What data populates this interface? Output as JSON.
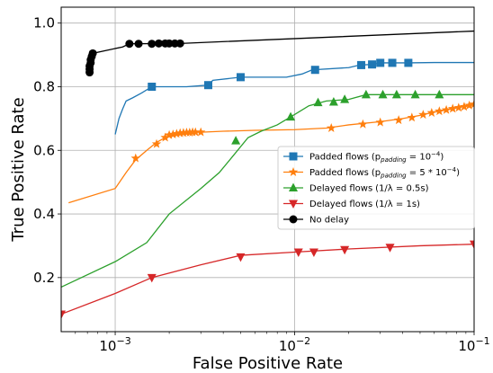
{
  "chart_data": {
    "type": "line",
    "xlabel": "False Positive Rate",
    "ylabel": "True Positive Rate",
    "xscale": "log",
    "xlim": [
      0.0005,
      0.1
    ],
    "ylim": [
      0.03,
      1.05
    ],
    "grid": true,
    "legend_position": "center-right",
    "x_ticks": [
      {
        "value": 0.001,
        "base": "10",
        "exp": "−3"
      },
      {
        "value": 0.01,
        "base": "10",
        "exp": "−2"
      },
      {
        "value": 0.1,
        "base": "10",
        "exp": "−1"
      }
    ],
    "y_ticks": [
      {
        "value": 0.2,
        "label": "0.2"
      },
      {
        "value": 0.4,
        "label": "0.4"
      },
      {
        "value": 0.6,
        "label": "0.6"
      },
      {
        "value": 0.8,
        "label": "0.8"
      },
      {
        "value": 1.0,
        "label": "1.0"
      }
    ],
    "series": [
      {
        "name": "Padded flows",
        "legend_suffix": "(p",
        "legend_sub": "padding",
        "legend_rest": " = 10",
        "legend_sup": "−4",
        "legend_end": ")",
        "color": "#1f77b4",
        "marker": "square",
        "line": [
          [
            0.001,
            0.65
          ],
          [
            0.00105,
            0.7
          ],
          [
            0.0011,
            0.73
          ],
          [
            0.00115,
            0.755
          ],
          [
            0.00125,
            0.765
          ],
          [
            0.0014,
            0.78
          ],
          [
            0.0016,
            0.8
          ],
          [
            0.0025,
            0.8
          ],
          [
            0.0033,
            0.805
          ],
          [
            0.0035,
            0.82
          ],
          [
            0.005,
            0.83
          ],
          [
            0.0065,
            0.83
          ],
          [
            0.009,
            0.83
          ],
          [
            0.011,
            0.84
          ],
          [
            0.0125,
            0.853
          ],
          [
            0.02,
            0.86
          ],
          [
            0.023,
            0.868
          ],
          [
            0.027,
            0.87
          ],
          [
            0.03,
            0.875
          ],
          [
            0.035,
            0.875
          ],
          [
            0.043,
            0.875
          ],
          [
            0.06,
            0.876
          ],
          [
            0.1,
            0.876
          ]
        ],
        "markers": [
          [
            0.0016,
            0.8
          ],
          [
            0.0033,
            0.805
          ],
          [
            0.005,
            0.83
          ],
          [
            0.013,
            0.853
          ],
          [
            0.0235,
            0.868
          ],
          [
            0.027,
            0.87
          ],
          [
            0.03,
            0.875
          ],
          [
            0.035,
            0.875
          ],
          [
            0.043,
            0.875
          ]
        ]
      },
      {
        "name": "Padded flows",
        "legend_suffix": "(p",
        "legend_sub": "padding",
        "legend_rest": " = 5 * 10",
        "legend_sup": "−4",
        "legend_end": ")",
        "color": "#ff7f0e",
        "marker": "star",
        "line": [
          [
            0.00055,
            0.435
          ],
          [
            0.001,
            0.48
          ],
          [
            0.00115,
            0.53
          ],
          [
            0.0013,
            0.57
          ],
          [
            0.0015,
            0.6
          ],
          [
            0.0017,
            0.625
          ],
          [
            0.0019,
            0.64
          ],
          [
            0.0023,
            0.655
          ],
          [
            0.003,
            0.657
          ],
          [
            0.004,
            0.66
          ],
          [
            0.006,
            0.663
          ],
          [
            0.01,
            0.665
          ],
          [
            0.015,
            0.67
          ],
          [
            0.02,
            0.68
          ],
          [
            0.03,
            0.69
          ],
          [
            0.04,
            0.7
          ],
          [
            0.05,
            0.71
          ],
          [
            0.06,
            0.72
          ],
          [
            0.075,
            0.73
          ],
          [
            0.1,
            0.745
          ]
        ],
        "markers": [
          [
            0.0013,
            0.575
          ],
          [
            0.0017,
            0.62
          ],
          [
            0.0019,
            0.64
          ],
          [
            0.002,
            0.648
          ],
          [
            0.0021,
            0.65
          ],
          [
            0.0022,
            0.652
          ],
          [
            0.0023,
            0.654
          ],
          [
            0.0024,
            0.655
          ],
          [
            0.0025,
            0.656
          ],
          [
            0.0026,
            0.656
          ],
          [
            0.0027,
            0.657
          ],
          [
            0.0028,
            0.657
          ],
          [
            0.003,
            0.657
          ],
          [
            0.016,
            0.67
          ],
          [
            0.024,
            0.682
          ],
          [
            0.03,
            0.688
          ],
          [
            0.038,
            0.695
          ],
          [
            0.045,
            0.703
          ],
          [
            0.052,
            0.712
          ],
          [
            0.058,
            0.718
          ],
          [
            0.064,
            0.723
          ],
          [
            0.07,
            0.727
          ],
          [
            0.076,
            0.731
          ],
          [
            0.082,
            0.734
          ],
          [
            0.088,
            0.737
          ],
          [
            0.094,
            0.741
          ],
          [
            0.1,
            0.745
          ]
        ]
      },
      {
        "name": "Delayed flows",
        "legend_suffix": "(1/λ = 0.5s)",
        "color": "#2ca02c",
        "marker": "triangle-up",
        "line": [
          [
            0.0005,
            0.17
          ],
          [
            0.001,
            0.25
          ],
          [
            0.0015,
            0.31
          ],
          [
            0.002,
            0.4
          ],
          [
            0.003,
            0.48
          ],
          [
            0.0038,
            0.53
          ],
          [
            0.0045,
            0.58
          ],
          [
            0.0055,
            0.64
          ],
          [
            0.0065,
            0.66
          ],
          [
            0.008,
            0.68
          ],
          [
            0.0095,
            0.705
          ],
          [
            0.012,
            0.74
          ],
          [
            0.015,
            0.755
          ],
          [
            0.02,
            0.76
          ],
          [
            0.025,
            0.775
          ],
          [
            0.03,
            0.775
          ],
          [
            0.05,
            0.775
          ],
          [
            0.1,
            0.775
          ]
        ],
        "markers": [
          [
            0.0047,
            0.63
          ],
          [
            0.0095,
            0.705
          ],
          [
            0.0135,
            0.75
          ],
          [
            0.0165,
            0.752
          ],
          [
            0.019,
            0.76
          ],
          [
            0.025,
            0.775
          ],
          [
            0.031,
            0.775
          ],
          [
            0.037,
            0.775
          ],
          [
            0.047,
            0.775
          ],
          [
            0.064,
            0.775
          ]
        ]
      },
      {
        "name": "Delayed flows",
        "legend_suffix": "(1/λ = 1s)",
        "color": "#d62728",
        "marker": "triangle-down",
        "line": [
          [
            0.0005,
            0.085
          ],
          [
            0.001,
            0.15
          ],
          [
            0.0016,
            0.2
          ],
          [
            0.003,
            0.24
          ],
          [
            0.005,
            0.27
          ],
          [
            0.01,
            0.28
          ],
          [
            0.02,
            0.29
          ],
          [
            0.05,
            0.3
          ],
          [
            0.1,
            0.305
          ]
        ],
        "markers": [
          [
            0.0005,
            0.085
          ],
          [
            0.0016,
            0.2
          ],
          [
            0.005,
            0.265
          ],
          [
            0.0105,
            0.28
          ],
          [
            0.0128,
            0.28
          ],
          [
            0.019,
            0.288
          ],
          [
            0.034,
            0.295
          ],
          [
            0.1,
            0.305
          ]
        ]
      },
      {
        "name": "No delay",
        "color": "#000000",
        "marker": "circle",
        "line": [
          [
            0.00072,
            0.845
          ],
          [
            0.00072,
            0.87
          ],
          [
            0.00073,
            0.88
          ],
          [
            0.00074,
            0.895
          ],
          [
            0.00075,
            0.905
          ],
          [
            0.0011,
            0.925
          ],
          [
            0.0012,
            0.935
          ],
          [
            0.0023,
            0.936
          ],
          [
            0.1,
            0.975
          ]
        ],
        "markers": [
          [
            0.00072,
            0.845
          ],
          [
            0.00072,
            0.855
          ],
          [
            0.00072,
            0.865
          ],
          [
            0.00073,
            0.875
          ],
          [
            0.00073,
            0.885
          ],
          [
            0.00074,
            0.895
          ],
          [
            0.00075,
            0.905
          ],
          [
            0.0012,
            0.935
          ],
          [
            0.00135,
            0.935
          ],
          [
            0.0016,
            0.935
          ],
          [
            0.00175,
            0.936
          ],
          [
            0.0019,
            0.936
          ],
          [
            0.002,
            0.936
          ],
          [
            0.00215,
            0.936
          ],
          [
            0.0023,
            0.936
          ]
        ]
      }
    ]
  }
}
